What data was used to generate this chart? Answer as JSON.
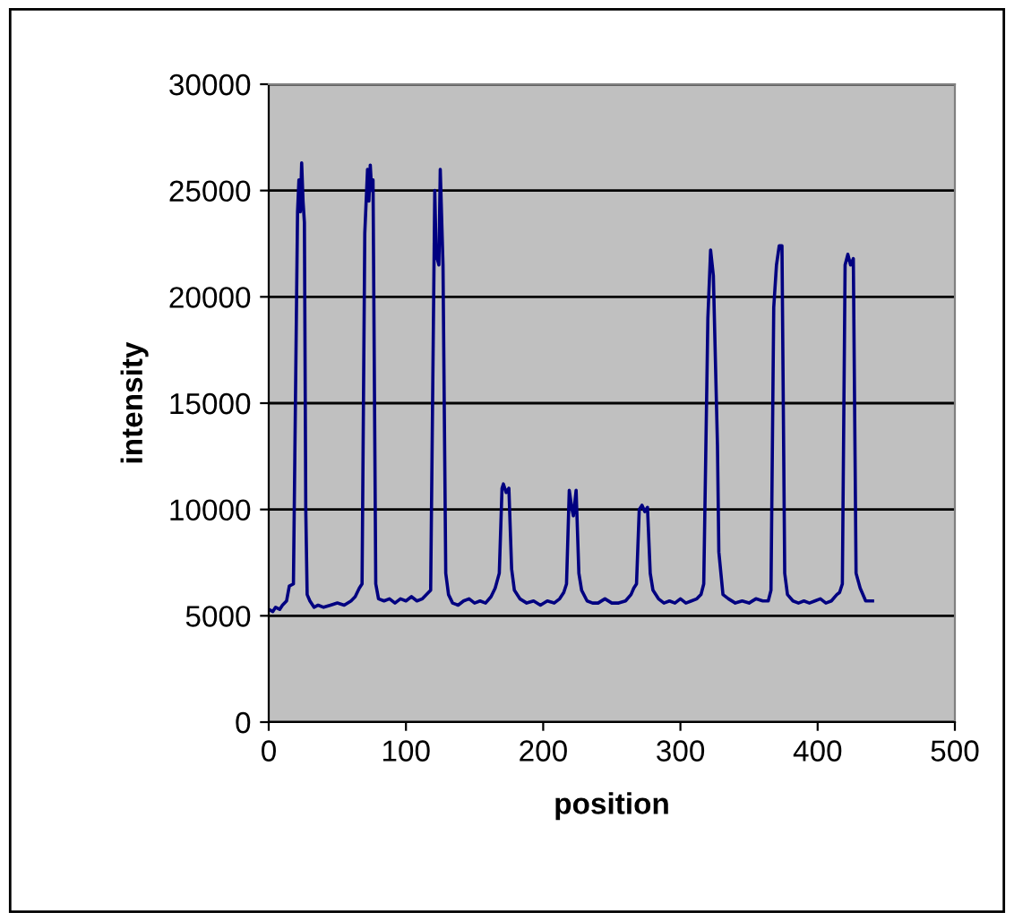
{
  "chart_data": {
    "type": "line",
    "xlabel": "position",
    "ylabel": "intensity",
    "xlim": [
      0,
      500
    ],
    "xticks": [
      0,
      100,
      200,
      300,
      400,
      500
    ],
    "ylim": [
      0,
      30000
    ],
    "yticks": [
      0,
      5000,
      10000,
      15000,
      20000,
      25000,
      30000
    ],
    "grid": "y",
    "legend": false,
    "marker": "none",
    "line_style": "solid",
    "series": [
      {
        "color": "#000080",
        "x": [
          0,
          3,
          5,
          8,
          10,
          13,
          15,
          18,
          21,
          22,
          23,
          24,
          25,
          26,
          27,
          28,
          30,
          33,
          36,
          40,
          45,
          50,
          55,
          60,
          63,
          66,
          68,
          70,
          72,
          73,
          74,
          75,
          76,
          78,
          80,
          84,
          88,
          92,
          96,
          100,
          104,
          108,
          112,
          115,
          118,
          121,
          122,
          124,
          125,
          127,
          129,
          131,
          134,
          138,
          142,
          146,
          150,
          154,
          158,
          162,
          165,
          168,
          170,
          171,
          173,
          175,
          177,
          179,
          183,
          188,
          193,
          198,
          203,
          208,
          212,
          215,
          217,
          219,
          221,
          222,
          224,
          226,
          228,
          232,
          236,
          240,
          245,
          250,
          255,
          260,
          264,
          266,
          268,
          270,
          272,
          274,
          276,
          278,
          280,
          284,
          288,
          292,
          296,
          300,
          304,
          308,
          312,
          315,
          317,
          320,
          322,
          324,
          327,
          328,
          331,
          335,
          340,
          345,
          350,
          355,
          360,
          364,
          366,
          368,
          370,
          372,
          374,
          376,
          378,
          382,
          386,
          390,
          394,
          398,
          402,
          406,
          410,
          414,
          416,
          418,
          420,
          422,
          424,
          426,
          428,
          431,
          435,
          440
        ],
        "values": [
          5300,
          5200,
          5400,
          5300,
          5500,
          5700,
          6400,
          6500,
          24000,
          25500,
          24000,
          26300,
          24500,
          23500,
          10000,
          6000,
          5700,
          5400,
          5500,
          5400,
          5500,
          5600,
          5500,
          5700,
          5900,
          6300,
          6500,
          23000,
          26000,
          24500,
          26200,
          25000,
          25500,
          6500,
          5800,
          5700,
          5800,
          5600,
          5800,
          5700,
          5900,
          5700,
          5800,
          6000,
          6200,
          25000,
          22000,
          21500,
          26000,
          21500,
          7000,
          6000,
          5600,
          5500,
          5700,
          5800,
          5600,
          5700,
          5600,
          5900,
          6300,
          7000,
          11000,
          11200,
          10800,
          11000,
          7200,
          6200,
          5800,
          5600,
          5700,
          5500,
          5700,
          5600,
          5800,
          6100,
          6500,
          10900,
          10000,
          9700,
          10900,
          7000,
          6200,
          5700,
          5600,
          5600,
          5800,
          5600,
          5600,
          5700,
          6000,
          6300,
          6500,
          10000,
          10200,
          9900,
          10100,
          7000,
          6200,
          5800,
          5600,
          5700,
          5600,
          5800,
          5600,
          5700,
          5800,
          6000,
          6500,
          19000,
          22200,
          21000,
          13000,
          8000,
          6000,
          5800,
          5600,
          5700,
          5600,
          5800,
          5700,
          5700,
          6200,
          19500,
          21500,
          22400,
          22400,
          7000,
          6000,
          5700,
          5600,
          5700,
          5600,
          5700,
          5800,
          5600,
          5700,
          6000,
          6100,
          6500,
          21500,
          22000,
          21500,
          21800,
          7000,
          6300,
          5700,
          5700
        ]
      }
    ]
  }
}
